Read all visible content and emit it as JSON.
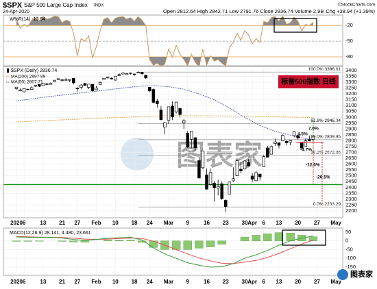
{
  "header": {
    "symbol": "$SPX",
    "name": "S&P 500 Large Cap Index",
    "exchange": "INDX",
    "date": "24-Apr-2020",
    "quote": "Open 2812.64 High 2842.71 Low 2791.76 Close 2836.74 Volume 2.9B",
    "change": "Chg +38.94 (+1.39%)",
    "source": "©StockCharts.com"
  },
  "watermark": "图表家",
  "logo": "图表家",
  "chart_data": [
    {
      "type": "line",
      "legend": "W%R(14) -13.94",
      "color": "#c9955a",
      "fill": "#8c8c8c",
      "ylim": [
        -97,
        0
      ],
      "yticks": [
        -20,
        -50,
        -80
      ],
      "values": [
        -8,
        -25,
        -18,
        -22,
        -10,
        -5,
        -12,
        -3,
        -8,
        -6,
        -2,
        -3,
        -15,
        -10,
        -12,
        -35,
        -78,
        -45,
        -50,
        -40,
        -82,
        -60,
        -30,
        -8,
        -5,
        -15,
        -6,
        -4,
        -3,
        -8,
        -5,
        -12,
        -3,
        -10,
        -20,
        -85,
        -96,
        -92,
        -98,
        -94,
        -65,
        -80,
        -58,
        -75,
        -85,
        -97,
        -75,
        -90,
        -99,
        -65,
        -96,
        -78,
        -88,
        -85,
        -92,
        -97,
        -62,
        -52,
        -35,
        -48,
        -30,
        -38,
        -55,
        -45,
        -52,
        -12,
        -15,
        -5,
        -3,
        -12,
        -2,
        -18,
        -15,
        -4,
        -12,
        -30,
        -18,
        -20,
        -13.94
      ]
    },
    {
      "type": "candlestick",
      "legend": "$SPX (Daily) 2836.74",
      "title_box": "标普500指数 日线",
      "grid": true,
      "ylim": [
        2141,
        3435
      ],
      "yticks": [
        2200,
        2250,
        2300,
        2350,
        2400,
        2450,
        2500,
        2550,
        2600,
        2650,
        2700,
        2750,
        2800,
        2850,
        2900,
        2950,
        3000,
        3050,
        3100,
        3150,
        3200,
        3250,
        3300,
        3350,
        3400
      ],
      "xticks": [
        {
          "value": 0,
          "label": "2020"
        },
        {
          "value": 2,
          "label": "6"
        },
        {
          "value": 7,
          "label": "13"
        },
        {
          "value": 12,
          "label": "21"
        },
        {
          "value": 16,
          "label": "27"
        },
        {
          "value": 21,
          "label": "Feb"
        },
        {
          "value": 26,
          "label": "10"
        },
        {
          "value": 31,
          "label": "18"
        },
        {
          "value": 35,
          "label": "24"
        },
        {
          "value": 40,
          "label": "Mar"
        },
        {
          "value": 45,
          "label": "9"
        },
        {
          "value": 50,
          "label": "16"
        },
        {
          "value": 55,
          "label": "23"
        },
        {
          "value": 60,
          "label": "30"
        },
        {
          "value": 62,
          "label": "Apr"
        },
        {
          "value": 65,
          "label": "6"
        },
        {
          "value": 69,
          "label": "13"
        },
        {
          "value": 74,
          "label": "20"
        },
        {
          "value": 79,
          "label": "27"
        },
        {
          "value": 84,
          "label": "May"
        }
      ],
      "open": [
        3245,
        3227,
        3218,
        3241,
        3238,
        3266,
        3281,
        3271,
        3285,
        3282,
        3302,
        3323,
        3315,
        3321,
        3317,
        3333,
        3248,
        3256,
        3289,
        3256,
        3282,
        3236,
        3281,
        3324,
        3344,
        3335,
        3318,
        3365,
        3370,
        3365,
        3378,
        3369,
        3380,
        3386,
        3360,
        3257,
        3238,
        3140,
        3063,
        2916,
        2974,
        3096,
        3046,
        3075,
        2954,
        2864,
        2813,
        2826,
        2630,
        2569,
        2508,
        2425,
        2436,
        2394,
        2431,
        2290,
        2344,
        2457,
        2501,
        2556,
        2558,
        2614,
        2498,
        2458,
        2515,
        2578,
        2738,
        2685,
        2776,
        2782,
        2800,
        2795,
        2787,
        2843,
        2845,
        2784,
        2751,
        2810,
        2812
      ],
      "high": [
        3258,
        3246,
        3247,
        3244,
        3267,
        3276,
        3282,
        3289,
        3295,
        3299,
        3317,
        3330,
        3329,
        3337,
        3326,
        3333,
        3258,
        3285,
        3293,
        3285,
        3283,
        3268,
        3306,
        3337,
        3348,
        3341,
        3352,
        3376,
        3385,
        3381,
        3380,
        3375,
        3393,
        3389,
        3360,
        3259,
        3247,
        3156,
        3097,
        2960,
        3091,
        3136,
        3131,
        3083,
        2985,
        2883,
        2882,
        2826,
        2661,
        2711,
        2562,
        2563,
        2453,
        2466,
        2453,
        2300,
        2450,
        2572,
        2638,
        2616,
        2632,
        2642,
        2522,
        2540,
        2516,
        2677,
        2756,
        2760,
        2819,
        2782,
        2853,
        2801,
        2807,
        2880,
        2847,
        2785,
        2815,
        2844,
        2843
      ],
      "low": [
        3236,
        3223,
        3215,
        3232,
        3237,
        3260,
        3259,
        3268,
        3277,
        3281,
        3302,
        3317,
        3305,
        3318,
        3301,
        3281,
        3215,
        3243,
        3268,
        3242,
        3222,
        3235,
        3281,
        3324,
        3329,
        3323,
        3314,
        3355,
        3370,
        3363,
        3367,
        3355,
        3378,
        3361,
        3328,
        3215,
        3118,
        3082,
        2977,
        2855,
        2944,
        2977,
        3032,
        2999,
        2901,
        2735,
        2735,
        2708,
        2478,
        2555,
        2380,
        2413,
        2280,
        2332,
        2295,
        2192,
        2344,
        2449,
        2501,
        2520,
        2556,
        2580,
        2447,
        2455,
        2459,
        2578,
        2658,
        2685,
        2756,
        2735,
        2800,
        2761,
        2762,
        2830,
        2809,
        2727,
        2749,
        2796,
        2792
      ],
      "close": [
        3258,
        3235,
        3246,
        3237,
        3253,
        3275,
        3265,
        3289,
        3283,
        3290,
        3317,
        3330,
        3321,
        3321,
        3325,
        3295,
        3244,
        3276,
        3273,
        3284,
        3226,
        3249,
        3298,
        3334,
        3345,
        3328,
        3352,
        3358,
        3379,
        3374,
        3380,
        3370,
        3386,
        3373,
        3338,
        3226,
        3128,
        3116,
        2979,
        2954,
        3090,
        3003,
        3130,
        3024,
        2972,
        2747,
        2882,
        2741,
        2481,
        2711,
        2386,
        2529,
        2398,
        2409,
        2305,
        2237,
        2447,
        2476,
        2630,
        2541,
        2627,
        2585,
        2471,
        2527,
        2489,
        2664,
        2659,
        2750,
        2790,
        2761,
        2846,
        2783,
        2800,
        2875,
        2823,
        2737,
        2799,
        2798,
        2837
      ],
      "overlays": [
        {
          "legend": "MA(200) 2997.99",
          "color": "#e09a3a",
          "x": [
            0,
            20,
            40,
            60,
            78
          ],
          "values": [
            2960,
            2990,
            3015,
            3010,
            2997.99
          ]
        },
        {
          "legend": "MA(50) 2807.71",
          "color": "#4a55b0",
          "x": [
            0,
            8,
            16,
            24,
            32,
            36,
            40,
            44,
            48,
            52,
            56,
            60,
            64,
            68,
            72,
            76,
            78
          ],
          "values": [
            3140,
            3175,
            3205,
            3235,
            3265,
            3270,
            3262,
            3240,
            3200,
            3150,
            3080,
            3000,
            2930,
            2880,
            2848,
            2818,
            2807.71
          ]
        }
      ],
      "fib_levels": [
        {
          "value": 3386.61,
          "label": "100.0% 3386.61"
        },
        {
          "value": 2946.04,
          "label": "61.8% 2946.04"
        },
        {
          "value": 2809.95,
          "label": "50.0% 2809.95"
        },
        {
          "value": 2673.86,
          "label": "38.2% 2673.86"
        },
        {
          "value": 2233.29,
          "label": "0.0% 2233.29"
        }
      ],
      "support_level": 2425,
      "annotations": [
        "7.0%",
        "4.5%",
        "-4.7%",
        "-12.5%",
        "-20.5%"
      ]
    },
    {
      "type": "macd",
      "legend": "MACD(12,26,9) 28.141, 4.480, 23.661",
      "ylim": [
        -197,
        73
      ],
      "yticks": [
        50,
        0,
        -50,
        -100,
        -150
      ],
      "xticks": [
        {
          "value": 0,
          "label": "2020"
        },
        {
          "value": 2,
          "label": "6"
        },
        {
          "value": 7,
          "label": "13"
        },
        {
          "value": 12,
          "label": "21"
        },
        {
          "value": 16,
          "label": "27"
        },
        {
          "value": 21,
          "label": "Feb"
        },
        {
          "value": 26,
          "label": "10"
        },
        {
          "value": 31,
          "label": "18"
        },
        {
          "value": 35,
          "label": "24"
        },
        {
          "value": 40,
          "label": "Mar"
        },
        {
          "value": 45,
          "label": "9"
        },
        {
          "value": 50,
          "label": "16"
        },
        {
          "value": 55,
          "label": "23"
        },
        {
          "value": 60,
          "label": "30"
        },
        {
          "value": 62,
          "label": "Apr"
        },
        {
          "value": 65,
          "label": "6"
        },
        {
          "value": 69,
          "label": "13"
        },
        {
          "value": 74,
          "label": "20"
        },
        {
          "value": 79,
          "label": "27"
        },
        {
          "value": 84,
          "label": "May"
        }
      ],
      "x": [
        0,
        3,
        6,
        9,
        12,
        15,
        18,
        21,
        24,
        27,
        30,
        33,
        36,
        39,
        42,
        45,
        48,
        51,
        54,
        57,
        60,
        63,
        66,
        69,
        72,
        75,
        78
      ],
      "macd": [
        22,
        20,
        19,
        20,
        16,
        8,
        2,
        8,
        15,
        18,
        20,
        5,
        -40,
        -75,
        -100,
        -125,
        -140,
        -150,
        -148,
        -130,
        -100,
        -80,
        -55,
        -25,
        0,
        15,
        28.141
      ],
      "signal": [
        25,
        23,
        21,
        20,
        19,
        15,
        10,
        8,
        10,
        13,
        16,
        14,
        -2,
        -25,
        -50,
        -75,
        -98,
        -115,
        -128,
        -130,
        -122,
        -112,
        -95,
        -72,
        -45,
        -18,
        4.48
      ],
      "histogram": [
        -3,
        -3,
        -2,
        0,
        -3,
        -7,
        -8,
        0,
        5,
        5,
        4,
        -9,
        -38,
        -50,
        -50,
        -50,
        -42,
        -35,
        -20,
        0,
        22,
        32,
        40,
        47,
        45,
        33,
        23.661
      ],
      "macd_color": "#3a9a3a",
      "signal_color": "#e05050",
      "histogram_color": "#8cc870"
    }
  ]
}
